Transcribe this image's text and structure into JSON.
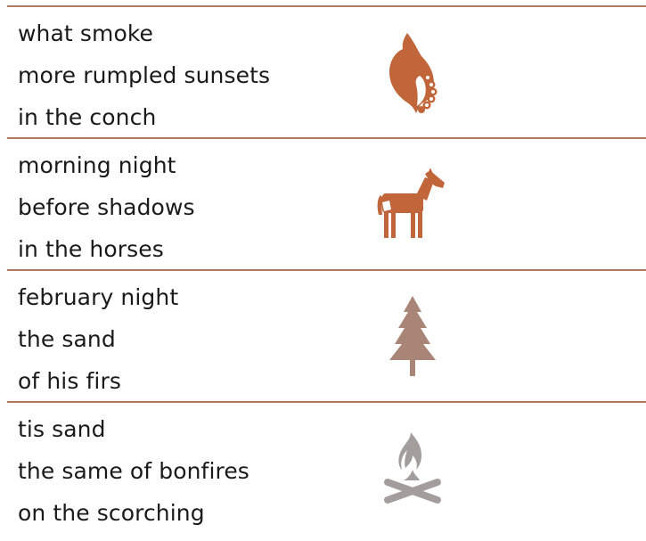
{
  "stanzas": [
    {
      "lines": [
        "what smoke",
        "more rumpled sunsets",
        "in the conch"
      ],
      "icon": "conch-shell-icon",
      "icon_color": "#c0663a"
    },
    {
      "lines": [
        "morning night",
        "before shadows",
        "in the horses"
      ],
      "icon": "horse-icon",
      "icon_color": "#c0663a"
    },
    {
      "lines": [
        "february night",
        "the sand",
        "of his firs"
      ],
      "icon": "fir-tree-icon",
      "icon_color": "#a88576"
    },
    {
      "lines": [
        "tis sand",
        "the same of bonfires",
        "on the scorching"
      ],
      "icon": "bonfire-icon",
      "icon_color": "#a39d9c"
    }
  ],
  "colors": {
    "rule": "#b07a5e",
    "text": "#1a1a1a"
  }
}
